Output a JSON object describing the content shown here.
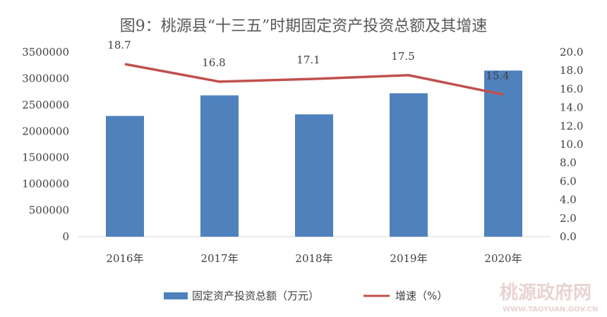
{
  "chart_data": {
    "type": "bar+line",
    "title": "图9：桃源县“十三五”时期固定资产投资总额及其增速",
    "categories": [
      "2016年",
      "2017年",
      "2018年",
      "2019年",
      "2020年"
    ],
    "series": [
      {
        "name": "固定资产投资总额（万元）",
        "type": "bar",
        "axis": "left",
        "color": "#4f81bd",
        "values": [
          2290000,
          2680000,
          2320000,
          2720000,
          3150000
        ]
      },
      {
        "name": "增速（%）",
        "type": "line",
        "axis": "right",
        "color": "#c0504d",
        "values": [
          18.7,
          16.8,
          17.1,
          17.5,
          15.4
        ],
        "labels": [
          "18.7",
          "16.8",
          "17.1",
          "17.5",
          "15.4"
        ]
      }
    ],
    "y_left": {
      "min": 0,
      "max": 3500000,
      "ticks": [
        "0",
        "500000",
        "1000000",
        "1500000",
        "2000000",
        "2500000",
        "3000000",
        "3500000"
      ]
    },
    "y_right": {
      "min": 0,
      "max": 20,
      "ticks": [
        "0.0",
        "2.0",
        "4.0",
        "6.0",
        "8.0",
        "10.0",
        "12.0",
        "14.0",
        "16.0",
        "18.0",
        "20.0"
      ]
    },
    "grid": false,
    "legend_position": "bottom"
  },
  "watermark": {
    "main": "桃源政府网",
    "sub": "WWW.TAOYUAN.GOV.CN"
  }
}
